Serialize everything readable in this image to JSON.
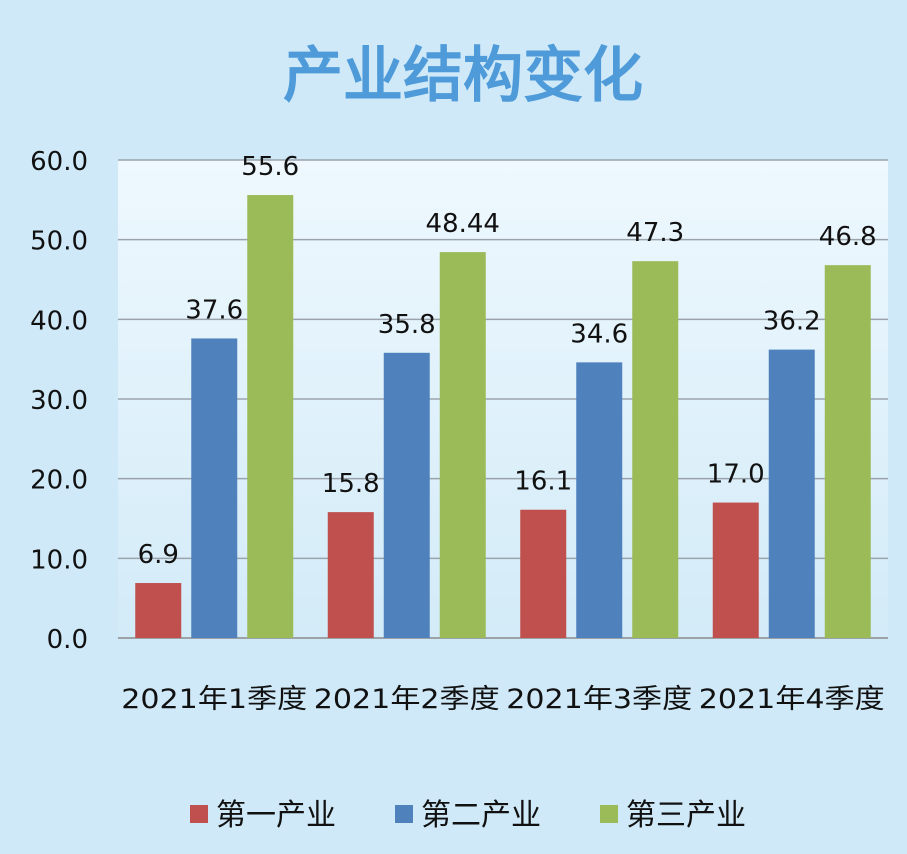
{
  "chart_data": {
    "type": "bar",
    "title": "产业结构变化",
    "categories": [
      "2021年1季度",
      "2021年2季度",
      "2021年3季度",
      "2021年4季度"
    ],
    "series": [
      {
        "name": "第一产业",
        "values": [
          "6.9",
          "15.8",
          "16.1",
          "17.0"
        ],
        "color": "#c0504d"
      },
      {
        "name": "第二产业",
        "values": [
          "37.6",
          "35.8",
          "34.6",
          "36.2"
        ],
        "color": "#4f81bd"
      },
      {
        "name": "第三产业",
        "values": [
          "55.6",
          "48.44",
          "47.3",
          "46.8"
        ],
        "color": "#9bbb59"
      }
    ],
    "ylim": [
      0,
      60
    ],
    "yticks": [
      "0.0",
      "10.0",
      "20.0",
      "30.0",
      "40.0",
      "50.0",
      "60.0"
    ],
    "grid": true,
    "legend_position": "bottom",
    "title_color": "#4f9bd9",
    "plot_background": [
      "#eef8fe",
      "#d3ebf8"
    ]
  }
}
